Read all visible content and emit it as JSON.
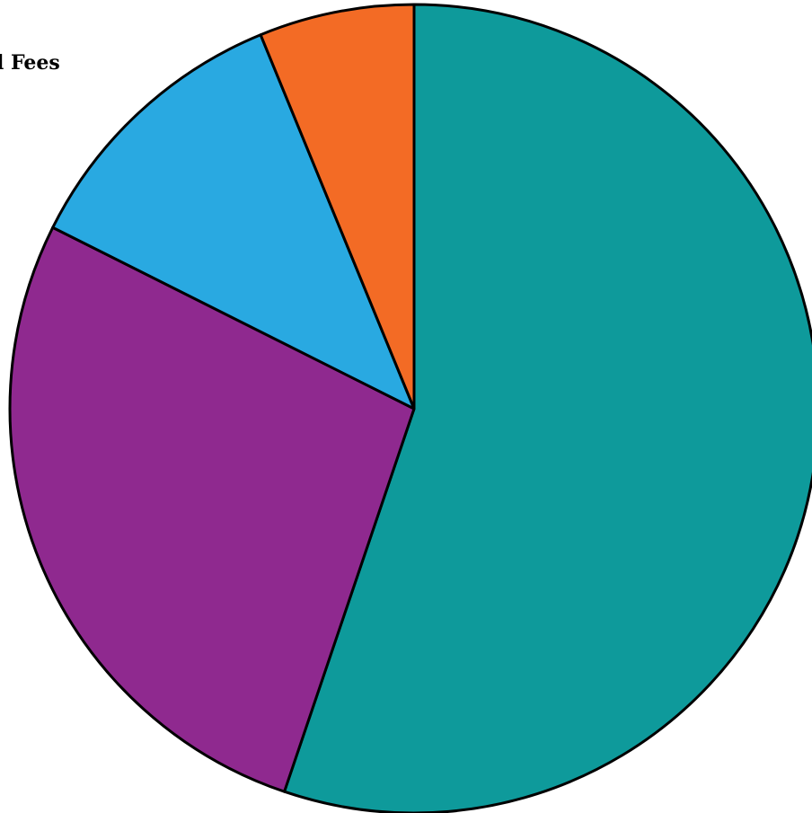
{
  "chart_data": {
    "type": "pie",
    "start_angle_deg": 0,
    "direction": "clockwise",
    "slices": [
      {
        "value": 55.2,
        "color": "#0E9A9B"
      },
      {
        "value": 27.2,
        "color": "#8F298F"
      },
      {
        "value": 11.4,
        "color": "#29A9E1"
      },
      {
        "value": 6.2,
        "color": "#F36B25"
      }
    ],
    "annotations": [
      {
        "text": "l Fees"
      }
    ],
    "legend": "none"
  }
}
